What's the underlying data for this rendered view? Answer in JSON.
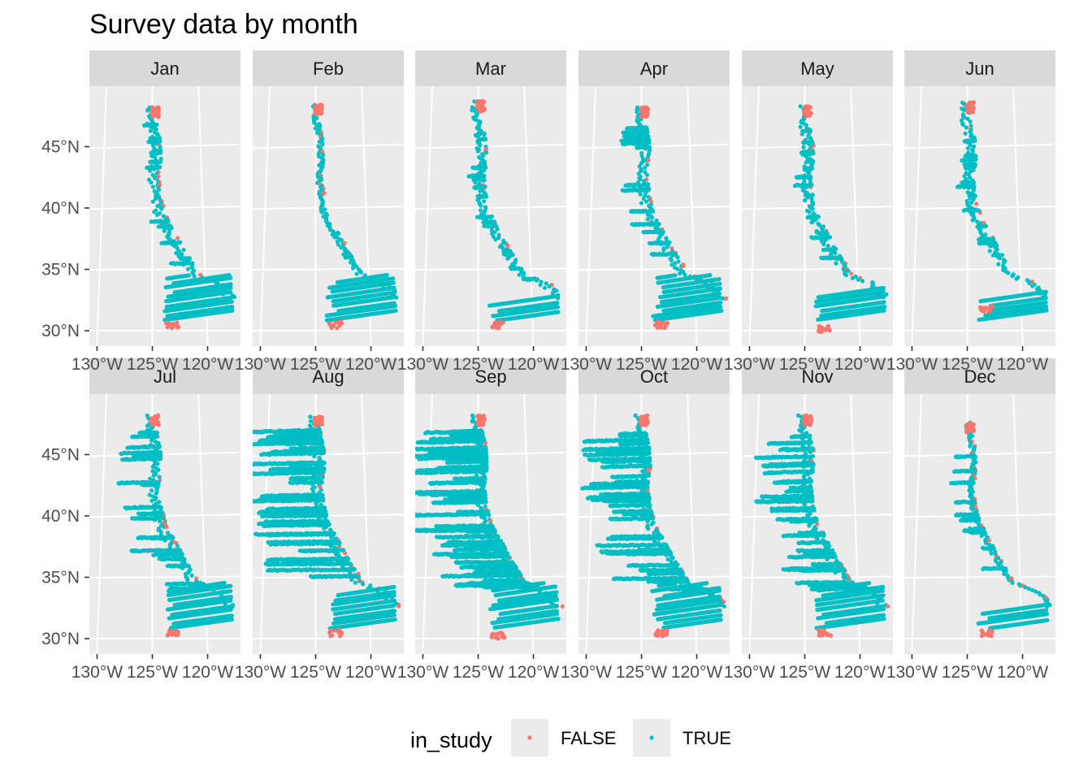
{
  "chart_data": {
    "type": "scatter",
    "title": "Survey data by month",
    "facet_by": "month",
    "panels": [
      "Jan",
      "Feb",
      "Mar",
      "Apr",
      "May",
      "Jun",
      "Jul",
      "Aug",
      "Sep",
      "Oct",
      "Nov",
      "Dec"
    ],
    "y_ticks": [
      {
        "lat": 30,
        "label": "30°N"
      },
      {
        "lat": 35,
        "label": "35°N"
      },
      {
        "lat": 40,
        "label": "40°N"
      },
      {
        "lat": 45,
        "label": "45°N"
      }
    ],
    "x_ticks": [
      {
        "lon": -130,
        "label": "130°W"
      },
      {
        "lon": -125,
        "label": "125°W"
      },
      {
        "lon": -120,
        "label": "120°W"
      }
    ],
    "xlim": [
      -131,
      -117.3
    ],
    "ylim": [
      28.8,
      48.9
    ],
    "legend": {
      "title": "in_study",
      "position": "bottom",
      "entries": [
        {
          "label": "FALSE",
          "color": "#F8766D"
        },
        {
          "label": "TRUE",
          "color": "#00BFC4"
        }
      ]
    },
    "series": [
      {
        "name": "FALSE",
        "color": "#F8766D",
        "description": "survey points outside study area"
      },
      {
        "name": "TRUE",
        "color": "#00BFC4",
        "description": "survey points inside study area"
      }
    ],
    "grid": true
  }
}
